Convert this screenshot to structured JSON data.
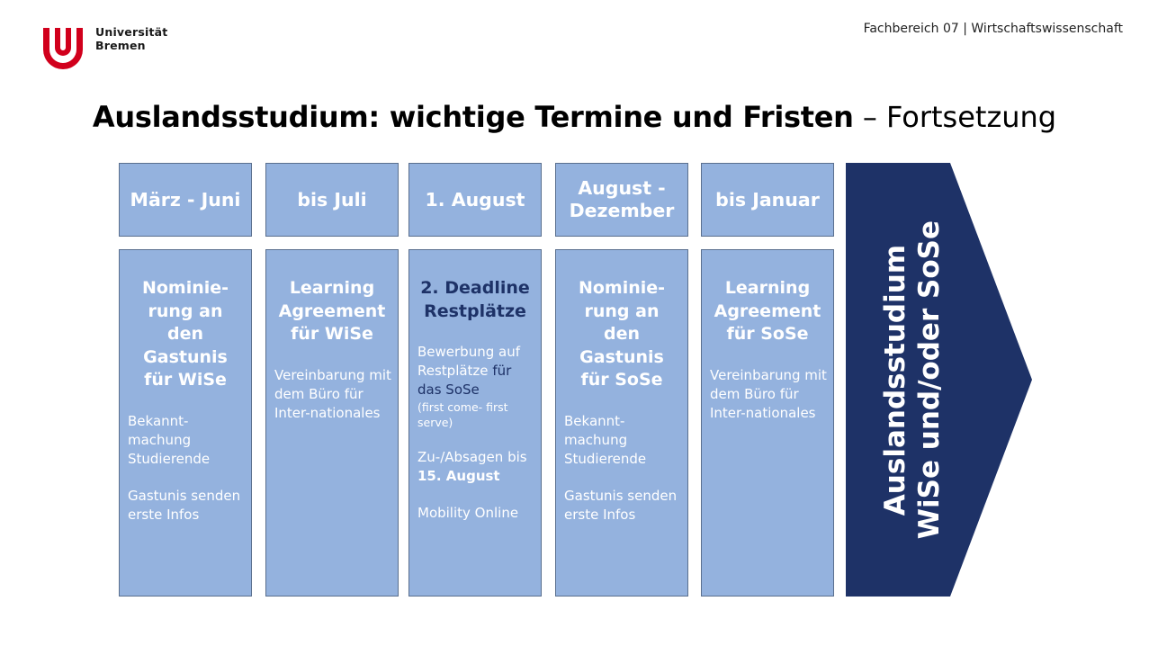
{
  "logo": {
    "line1": "Universität",
    "line2": "Bremen"
  },
  "department": "Fachbereich 07 | Wirtschaftswissenschaft",
  "title": {
    "main": "Auslandsstudium: wichtige Termine und Fristen",
    "sub": " – Fortsetzung"
  },
  "periods": [
    "März - Juni",
    "bis Juli",
    "1. August",
    "August - Dezember",
    "bis Januar"
  ],
  "columns": [
    {
      "heading": "Nominie-rung an den Gastunis für WiSe",
      "body1": "Bekannt-machung Studierende",
      "body2": "Gastunis senden erste Infos"
    },
    {
      "heading": "Learning Agreement für WiSe",
      "body1": "Vereinbarung mit dem Büro für Inter-nationales"
    },
    {
      "heading": "2. Deadline Restplätze",
      "body1a": "Bewerbung auf Restplätze",
      "body1b": "für das SoSe",
      "body1c": "(first come- first serve)",
      "body2a": "Zu-/Absagen bis ",
      "body2b": "15. August",
      "body3": "Mobility Online"
    },
    {
      "heading": "Nominie-rung an den Gastunis für SoSe",
      "body1": "Bekannt-machung Studierende",
      "body2": "Gastunis senden erste Infos"
    },
    {
      "heading": "Learning Agreement für SoSe",
      "body1": "Vereinbarung mit dem Büro für Inter-nationales"
    }
  ],
  "arrow": {
    "line1": "Auslandsstudium",
    "line2": "WiSe und/oder SoSe"
  },
  "colors": {
    "box": "#94b2de",
    "dark_blue": "#1e3267",
    "logo_red": "#d1001c"
  }
}
